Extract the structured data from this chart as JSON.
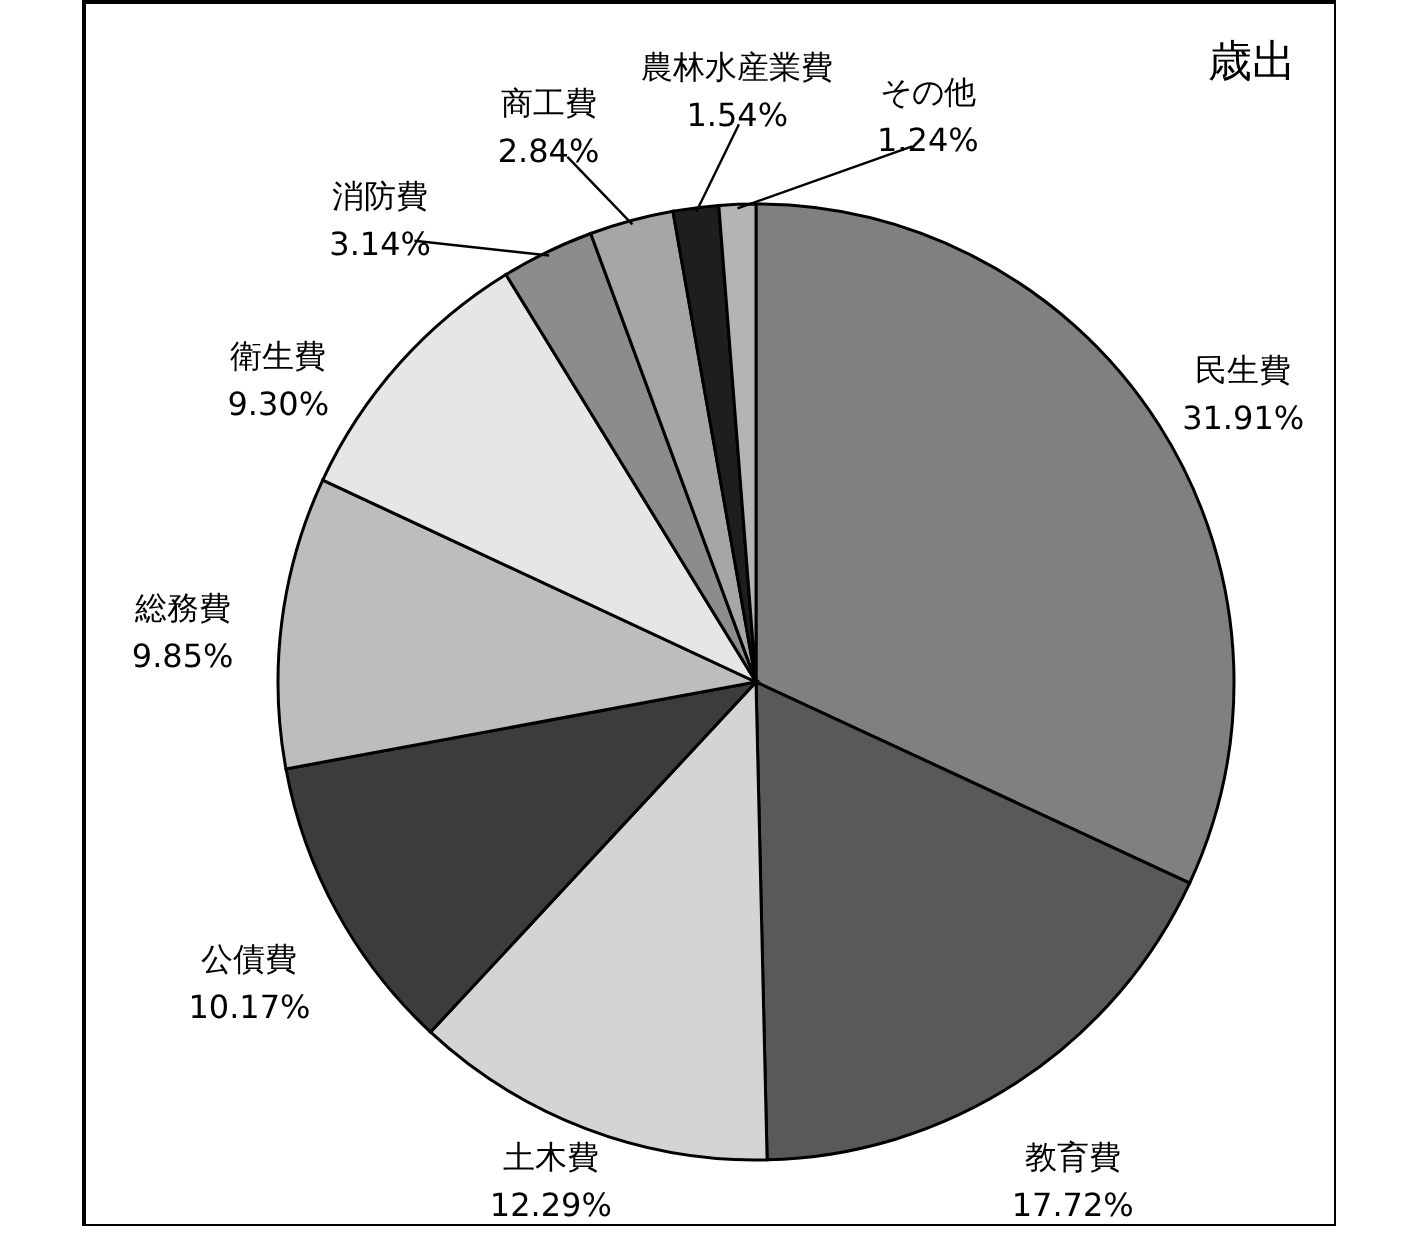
{
  "chart_data": {
    "type": "pie",
    "title": "歳出",
    "categories": [
      "民生費",
      "教育費",
      "土木費",
      "公債費",
      "総務費",
      "衛生費",
      "消防費",
      "商工費",
      "農林水産業費",
      "その他"
    ],
    "values": [
      31.91,
      17.72,
      12.29,
      10.17,
      9.85,
      9.3,
      3.14,
      2.84,
      1.54,
      1.24
    ],
    "value_labels": [
      "31.91%",
      "17.72%",
      "12.29%",
      "10.17%",
      "9.85%",
      "9.30%",
      "3.14%",
      "2.84%",
      "1.54%",
      "1.24%"
    ],
    "colors": [
      "#808080",
      "#595959",
      "#d4d4d4",
      "#3c3c3c",
      "#bdbdbd",
      "#e6e6e6",
      "#8c8c8c",
      "#a6a6a6",
      "#1e1e1e",
      "#b4b4b4"
    ]
  }
}
